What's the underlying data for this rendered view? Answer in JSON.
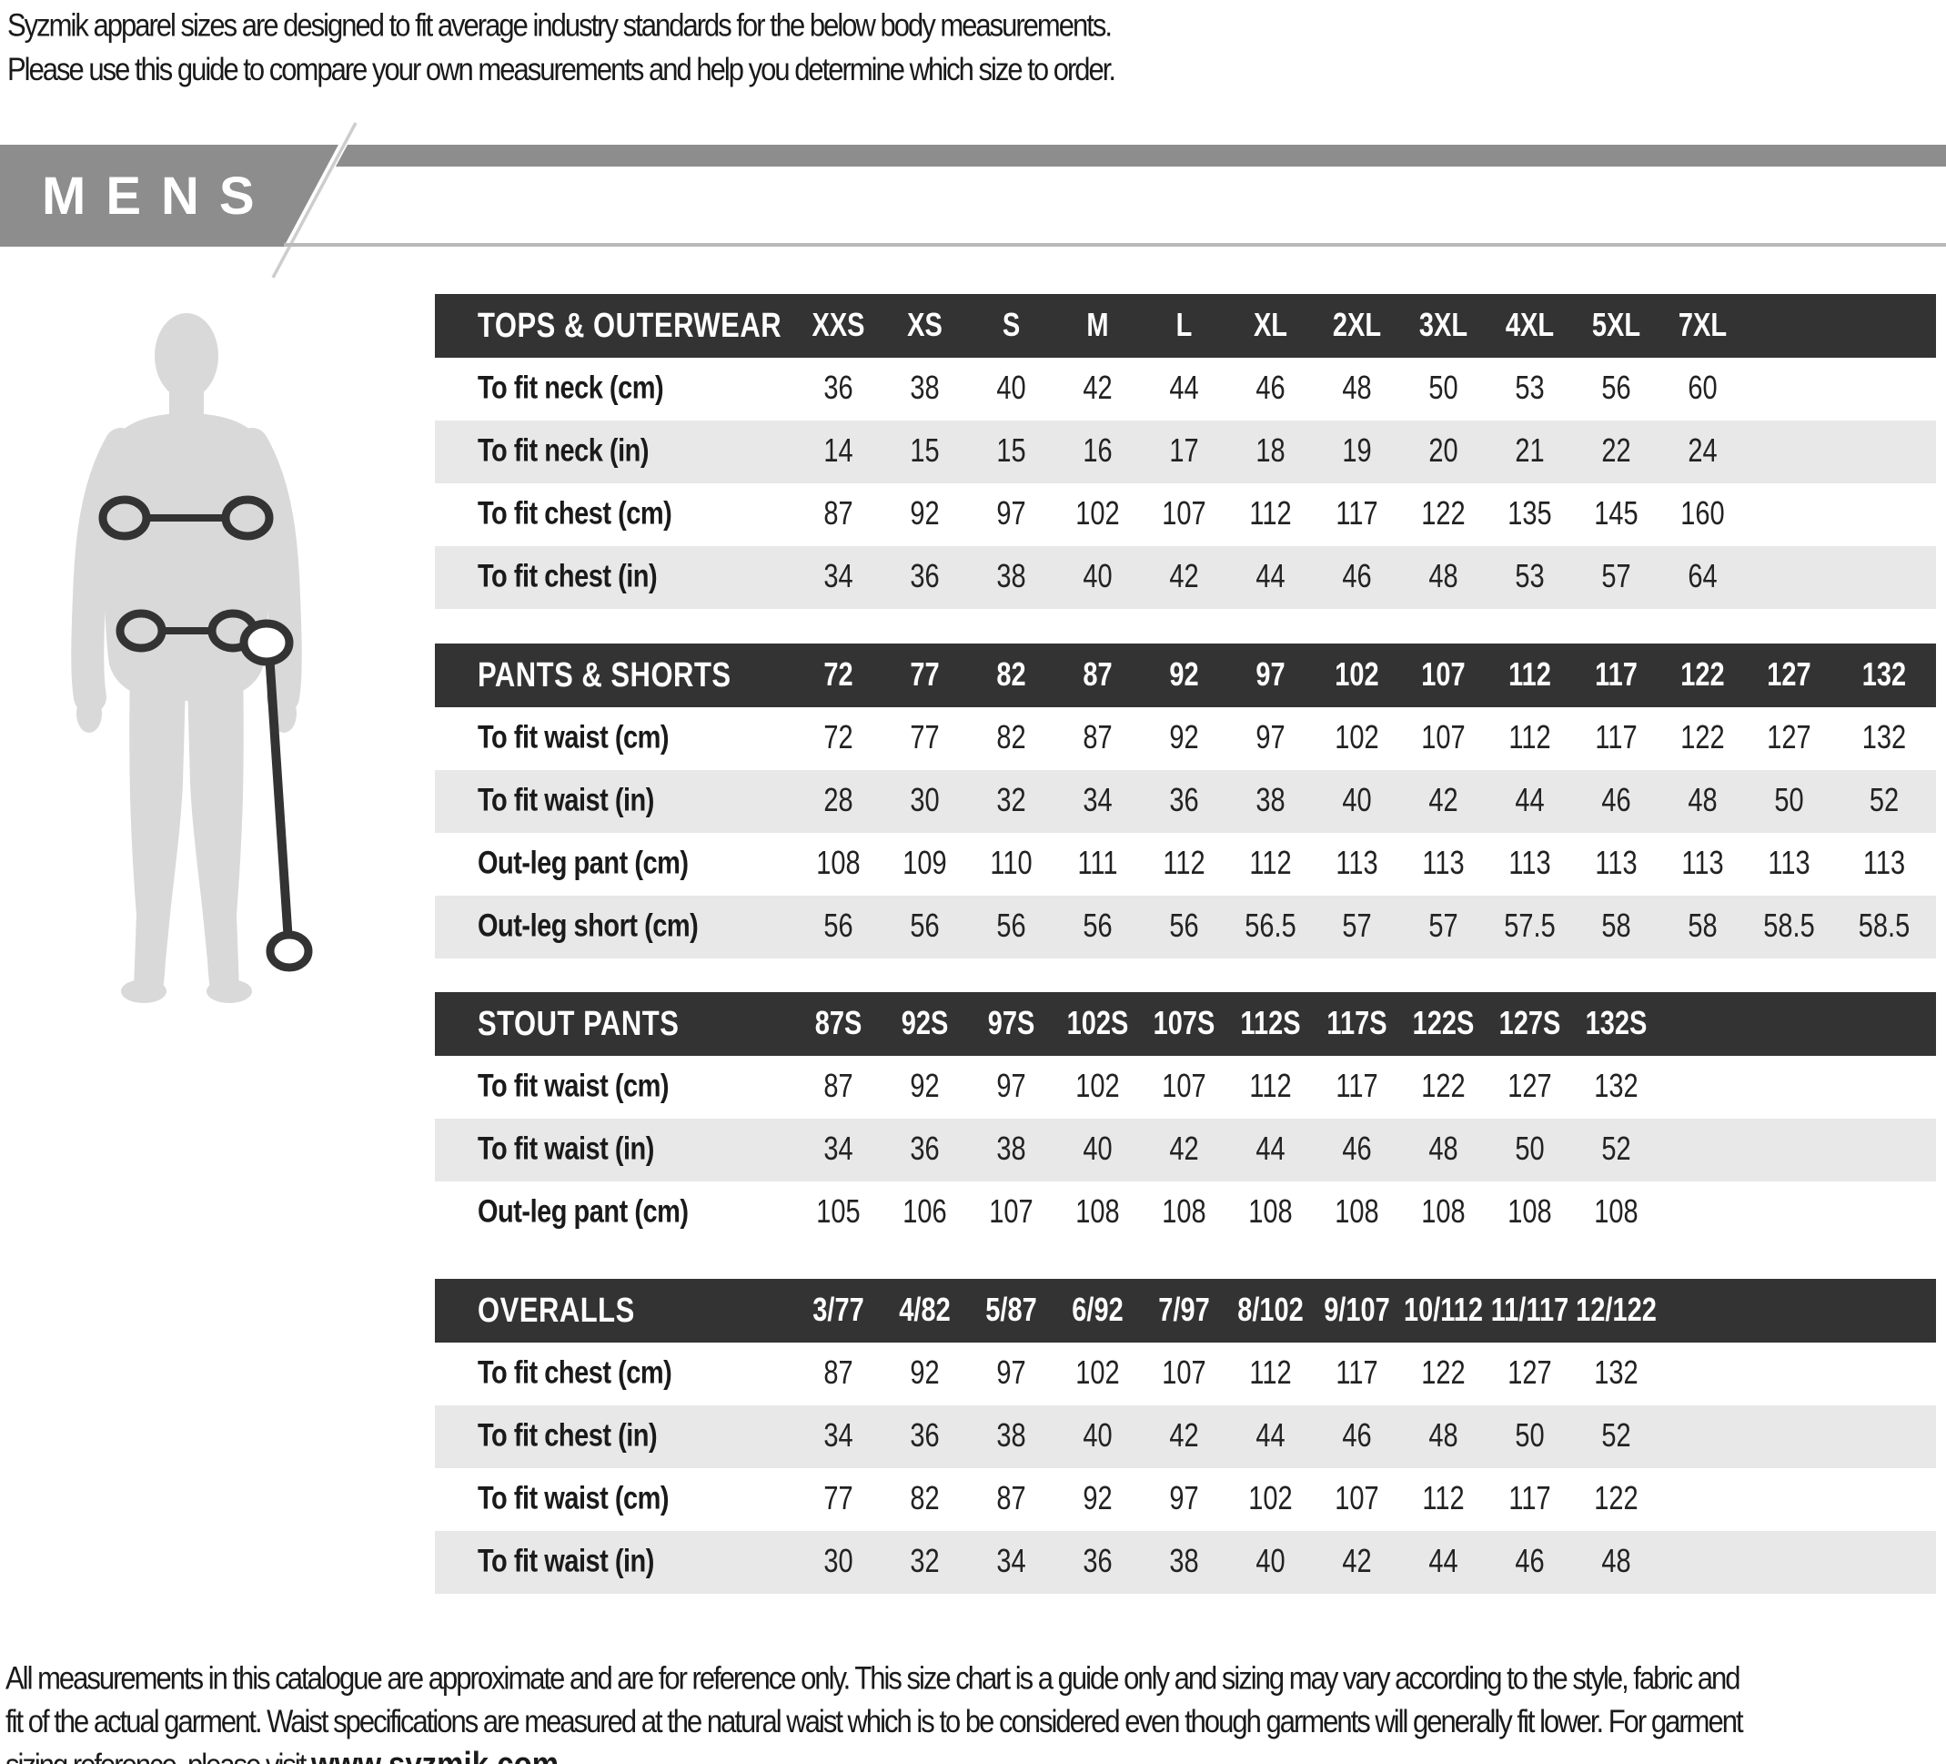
{
  "intro": {
    "line1": "Syzmik apparel sizes are designed to fit average industry standards for the below body measurements.",
    "line2": "Please use this guide to compare your own measurements and help you determine which size to order."
  },
  "banner": {
    "title": "MENS"
  },
  "tables": [
    {
      "name": "tops-outerwear",
      "header": "TOPS & OUTERWEAR",
      "sizes": [
        "XXS",
        "XS",
        "S",
        "M",
        "L",
        "XL",
        "2XL",
        "3XL",
        "4XL",
        "5XL",
        "7XL"
      ],
      "rows": [
        {
          "label": "To fit neck (cm)",
          "values": [
            "36",
            "38",
            "40",
            "42",
            "44",
            "46",
            "48",
            "50",
            "53",
            "56",
            "60"
          ]
        },
        {
          "label": "To fit neck (in)",
          "values": [
            "14",
            "15",
            "15",
            "16",
            "17",
            "18",
            "19",
            "20",
            "21",
            "22",
            "24"
          ]
        },
        {
          "label": "To fit chest (cm)",
          "values": [
            "87",
            "92",
            "97",
            "102",
            "107",
            "112",
            "117",
            "122",
            "135",
            "145",
            "160"
          ]
        },
        {
          "label": "To fit chest (in)",
          "values": [
            "34",
            "36",
            "38",
            "40",
            "42",
            "44",
            "46",
            "48",
            "53",
            "57",
            "64"
          ]
        }
      ]
    },
    {
      "name": "pants-shorts",
      "header": "PANTS & SHORTS",
      "sizes": [
        "72",
        "77",
        "82",
        "87",
        "92",
        "97",
        "102",
        "107",
        "112",
        "117",
        "122",
        "127",
        "132"
      ],
      "rows": [
        {
          "label": "To fit waist (cm)",
          "values": [
            "72",
            "77",
            "82",
            "87",
            "92",
            "97",
            "102",
            "107",
            "112",
            "117",
            "122",
            "127",
            "132"
          ]
        },
        {
          "label": "To fit waist (in)",
          "values": [
            "28",
            "30",
            "32",
            "34",
            "36",
            "38",
            "40",
            "42",
            "44",
            "46",
            "48",
            "50",
            "52"
          ]
        },
        {
          "label": "Out-leg pant (cm)",
          "values": [
            "108",
            "109",
            "110",
            "111",
            "112",
            "112",
            "113",
            "113",
            "113",
            "113",
            "113",
            "113",
            "113"
          ]
        },
        {
          "label": "Out-leg short (cm)",
          "values": [
            "56",
            "56",
            "56",
            "56",
            "56",
            "56.5",
            "57",
            "57",
            "57.5",
            "58",
            "58",
            "58.5",
            "58.5"
          ]
        }
      ]
    },
    {
      "name": "stout-pants",
      "header": "STOUT PANTS",
      "sizes": [
        "87S",
        "92S",
        "97S",
        "102S",
        "107S",
        "112S",
        "117S",
        "122S",
        "127S",
        "132S"
      ],
      "rows": [
        {
          "label": "To fit waist (cm)",
          "values": [
            "87",
            "92",
            "97",
            "102",
            "107",
            "112",
            "117",
            "122",
            "127",
            "132"
          ]
        },
        {
          "label": "To fit waist (in)",
          "values": [
            "34",
            "36",
            "38",
            "40",
            "42",
            "44",
            "46",
            "48",
            "50",
            "52"
          ]
        },
        {
          "label": "Out-leg pant (cm)",
          "values": [
            "105",
            "106",
            "107",
            "108",
            "108",
            "108",
            "108",
            "108",
            "108",
            "108"
          ]
        }
      ]
    },
    {
      "name": "overalls",
      "header": "OVERALLS",
      "sizes": [
        "3/77",
        "4/82",
        "5/87",
        "6/92",
        "7/97",
        "8/102",
        "9/107",
        "10/112",
        "11/117",
        "12/122"
      ],
      "rows": [
        {
          "label": "To fit chest (cm)",
          "values": [
            "87",
            "92",
            "97",
            "102",
            "107",
            "112",
            "117",
            "122",
            "127",
            "132"
          ]
        },
        {
          "label": "To fit chest (in)",
          "values": [
            "34",
            "36",
            "38",
            "40",
            "42",
            "44",
            "46",
            "48",
            "50",
            "52"
          ]
        },
        {
          "label": "To fit waist (cm)",
          "values": [
            "77",
            "82",
            "87",
            "92",
            "97",
            "102",
            "107",
            "112",
            "117",
            "122"
          ]
        },
        {
          "label": "To fit waist (in)",
          "values": [
            "30",
            "32",
            "34",
            "36",
            "38",
            "40",
            "42",
            "44",
            "46",
            "48"
          ]
        }
      ]
    }
  ],
  "footer": {
    "line1": "All measurements in this catalogue are approximate and are for reference only. This size chart is a guide only and sizing may vary according to the style, fabric and",
    "line2": "fit of the actual garment. Waist specifications are measured at the natural waist which is to be considered even though garments will generally fit lower. For garment",
    "line3_prefix": "sizing reference, please visit ",
    "website": "www.syzmik.com"
  },
  "colors": {
    "table_header_bg": "#333333",
    "row_alt_bg": "#e8e8e8",
    "banner_gray": "#8d8d8d",
    "banner_underline": "#b9b9b9",
    "diagonal_line": "#cdcdcd",
    "silhouette": "#d9d9d9",
    "measure_line": "#333333",
    "text": "#1a1a1a"
  }
}
